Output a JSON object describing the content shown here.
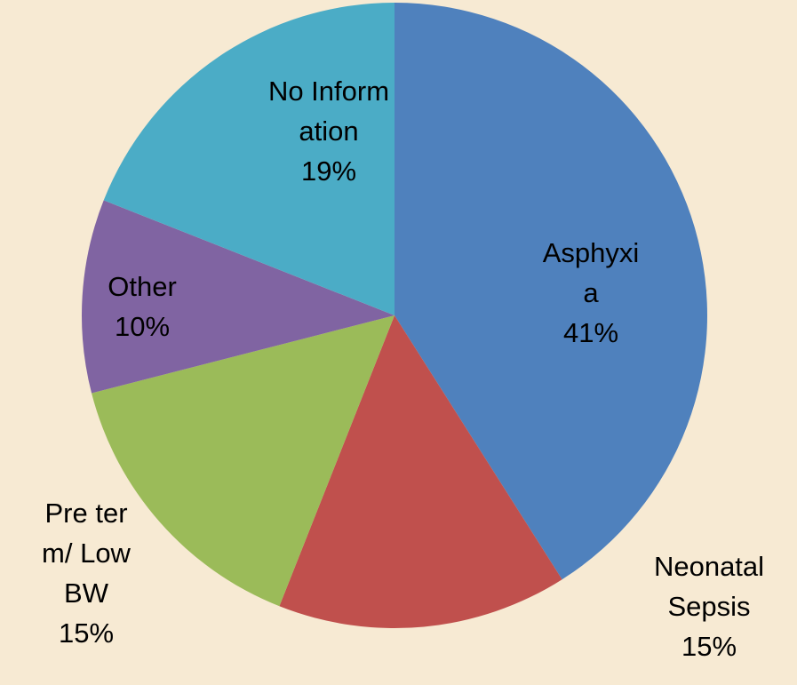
{
  "chart_data": {
    "type": "pie",
    "categories": [
      "Asphyxia",
      "Neonatal Sepsis",
      "Pre term/ Low BW",
      "Other",
      "No Information"
    ],
    "values": [
      41,
      15,
      15,
      10,
      19
    ],
    "value_labels": [
      "41%",
      "15%",
      "15%",
      "10%",
      "19%"
    ],
    "colors": [
      "#4f81bd",
      "#c0504d",
      "#9bbb59",
      "#8064a2",
      "#4bacc6"
    ]
  }
}
